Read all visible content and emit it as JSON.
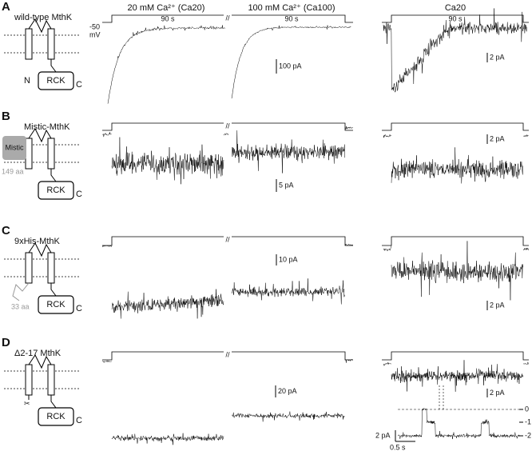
{
  "columns": [
    "20 mM Ca²⁺ (Ca20)",
    "100 mM Ca²⁺ (Ca100)",
    "Ca20"
  ],
  "protocol_labels": [
    "90 s",
    "90 s",
    "90 s"
  ],
  "voltage": {
    "value": "-50",
    "unit": "mV"
  },
  "panels": [
    {
      "letter": "A",
      "name": "wild-type MthK",
      "scale_bars": [
        "100 pA",
        "2 pA"
      ],
      "schematic": [
        "N",
        "RCK",
        "C"
      ]
    },
    {
      "letter": "B",
      "name": "Mistic-MthK",
      "scale_bars": [
        "5 pA",
        "2 pA"
      ],
      "schematic": [
        "Mistic",
        "149 aa",
        "RCK",
        "C"
      ]
    },
    {
      "letter": "C",
      "name": "9xHis-MthK",
      "scale_bars": [
        "10 pA",
        "2 pA"
      ],
      "schematic": [
        "33 aa",
        "RCK",
        "C"
      ]
    },
    {
      "letter": "D",
      "name": "Δ2-17 MthK",
      "scale_bars": [
        "20 pA",
        "2 pA"
      ],
      "schematic": [
        "RCK",
        "C"
      ]
    }
  ],
  "inset": {
    "levels": [
      "0",
      "-1",
      "-2"
    ],
    "scale_bars": [
      "2 pA",
      "0.5 s"
    ]
  }
}
